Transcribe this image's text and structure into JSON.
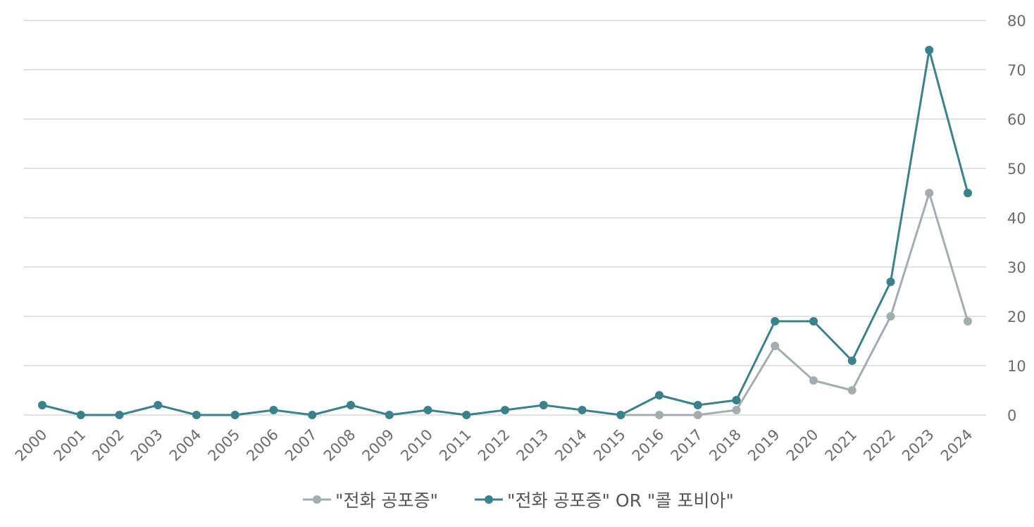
{
  "chart_data": {
    "type": "line",
    "title": "",
    "xlabel": "",
    "ylabel": "",
    "x": [
      "2000",
      "2001",
      "2002",
      "2003",
      "2004",
      "2005",
      "2006",
      "2007",
      "2008",
      "2009",
      "2010",
      "2011",
      "2012",
      "2013",
      "2014",
      "2015",
      "2016",
      "2017",
      "2018",
      "2019",
      "2020",
      "2021",
      "2022",
      "2023",
      "2024"
    ],
    "ylim": [
      0,
      80
    ],
    "yticks": [
      "0",
      "10",
      "20",
      "30",
      "40",
      "50",
      "60",
      "70",
      "80"
    ],
    "y_axis_position": "right",
    "grid": true,
    "legend_position": "bottom",
    "series": [
      {
        "name": "\"전화 공포증\"",
        "color": "#a3adaf",
        "values": [
          null,
          null,
          null,
          null,
          null,
          null,
          null,
          null,
          null,
          null,
          null,
          null,
          null,
          null,
          null,
          0,
          0,
          0,
          1,
          14,
          7,
          5,
          20,
          45,
          19
        ]
      },
      {
        "name": "\"전화 공포증\" OR \"콜 포비아\"",
        "color": "#3a8189",
        "values": [
          2,
          0,
          0,
          2,
          0,
          0,
          1,
          0,
          2,
          0,
          1,
          0,
          1,
          2,
          1,
          0,
          4,
          2,
          3,
          19,
          19,
          11,
          27,
          74,
          45
        ]
      }
    ]
  }
}
